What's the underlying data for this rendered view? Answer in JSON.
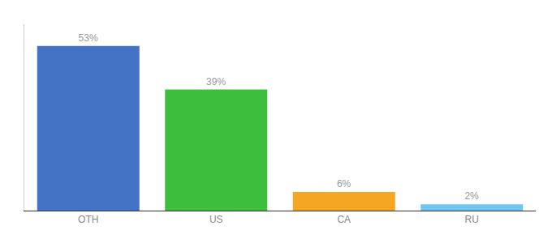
{
  "chart_data": {
    "type": "bar",
    "categories": [
      "OTH",
      "US",
      "CA",
      "RU"
    ],
    "values": [
      53,
      39,
      6,
      2
    ],
    "value_labels": [
      "53%",
      "39%",
      "6%",
      "2%"
    ],
    "colors": [
      "#4472c4",
      "#3dbf3d",
      "#f5a623",
      "#6ec6f0"
    ],
    "ylim": [
      0,
      60
    ],
    "data_labels": true,
    "tick_labels": "x",
    "grid": false
  }
}
